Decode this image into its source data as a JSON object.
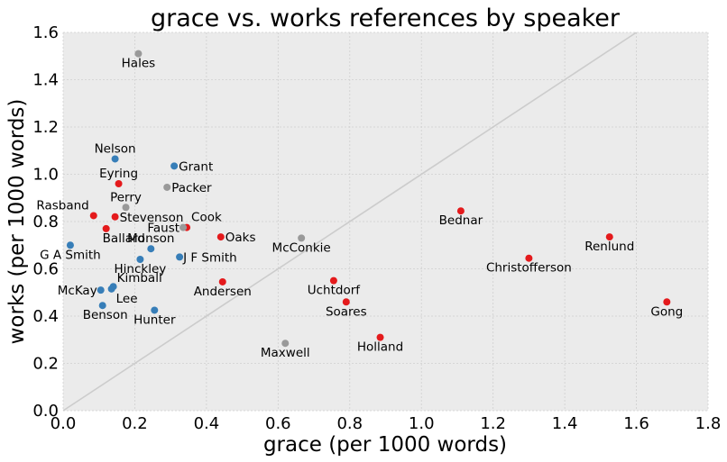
{
  "chart_data": {
    "type": "scatter",
    "title": "grace vs. works references by speaker",
    "xlabel": "grace (per 1000 words)",
    "ylabel": "works (per 1000 words)",
    "xlim": [
      0,
      1.8
    ],
    "ylim": [
      0,
      1.6
    ],
    "xticks": [
      "0.0",
      "0.2",
      "0.4",
      "0.6",
      "0.8",
      "1.0",
      "1.2",
      "1.4",
      "1.6",
      "1.8"
    ],
    "yticks": [
      "0.0",
      "0.2",
      "0.4",
      "0.6",
      "0.8",
      "1.0",
      "1.2",
      "1.4",
      "1.6"
    ],
    "grid": true,
    "reference_line": "y = x",
    "colors": {
      "blue": "#377eb8",
      "red": "#e41a1c",
      "gray": "#999999",
      "background": "#ebebeb",
      "grid": "#cfcfcf",
      "reference_line": "#cccccc"
    },
    "points": [
      {
        "label": "Hales",
        "x": 0.21,
        "y": 1.51,
        "color": "gray"
      },
      {
        "label": "Nelson",
        "x": 0.145,
        "y": 1.065,
        "color": "blue"
      },
      {
        "label": "Grant",
        "x": 0.31,
        "y": 1.035,
        "color": "blue"
      },
      {
        "label": "Eyring",
        "x": 0.155,
        "y": 0.96,
        "color": "red"
      },
      {
        "label": "Packer",
        "x": 0.29,
        "y": 0.945,
        "color": "gray"
      },
      {
        "label": "Perry",
        "x": 0.175,
        "y": 0.86,
        "color": "gray"
      },
      {
        "label": "Rasband",
        "x": 0.085,
        "y": 0.825,
        "color": "red"
      },
      {
        "label": "Stevenson",
        "x": 0.145,
        "y": 0.82,
        "color": "red"
      },
      {
        "label": "Cook",
        "x": 0.345,
        "y": 0.775,
        "color": "red"
      },
      {
        "label": "Faust",
        "x": 0.335,
        "y": 0.775,
        "color": "gray"
      },
      {
        "label": "Ballard",
        "x": 0.12,
        "y": 0.77,
        "color": "red"
      },
      {
        "label": "Oaks",
        "x": 0.44,
        "y": 0.735,
        "color": "red"
      },
      {
        "label": "McConkie",
        "x": 0.665,
        "y": 0.73,
        "color": "gray"
      },
      {
        "label": "Monson",
        "x": 0.245,
        "y": 0.685,
        "color": "blue"
      },
      {
        "label": "G A Smith",
        "x": 0.02,
        "y": 0.7,
        "color": "blue"
      },
      {
        "label": "J F Smith",
        "x": 0.325,
        "y": 0.65,
        "color": "blue"
      },
      {
        "label": "Hinckley",
        "x": 0.215,
        "y": 0.64,
        "color": "blue"
      },
      {
        "label": "Kimball",
        "x": 0.14,
        "y": 0.525,
        "color": "blue"
      },
      {
        "label": "Andersen",
        "x": 0.445,
        "y": 0.545,
        "color": "red"
      },
      {
        "label": "McKay",
        "x": 0.105,
        "y": 0.51,
        "color": "blue"
      },
      {
        "label": "Lee",
        "x": 0.135,
        "y": 0.515,
        "color": "blue"
      },
      {
        "label": "Benson",
        "x": 0.11,
        "y": 0.445,
        "color": "blue"
      },
      {
        "label": "Hunter",
        "x": 0.255,
        "y": 0.425,
        "color": "blue"
      },
      {
        "label": "Bednar",
        "x": 1.11,
        "y": 0.845,
        "color": "red"
      },
      {
        "label": "Renlund",
        "x": 1.525,
        "y": 0.735,
        "color": "red"
      },
      {
        "label": "Christofferson",
        "x": 1.3,
        "y": 0.645,
        "color": "red"
      },
      {
        "label": "Uchtdorf",
        "x": 0.755,
        "y": 0.55,
        "color": "red"
      },
      {
        "label": "Soares",
        "x": 0.79,
        "y": 0.46,
        "color": "red"
      },
      {
        "label": "Gong",
        "x": 1.685,
        "y": 0.46,
        "color": "red"
      },
      {
        "label": "Holland",
        "x": 0.885,
        "y": 0.31,
        "color": "red"
      },
      {
        "label": "Maxwell",
        "x": 0.62,
        "y": 0.285,
        "color": "gray"
      }
    ]
  }
}
